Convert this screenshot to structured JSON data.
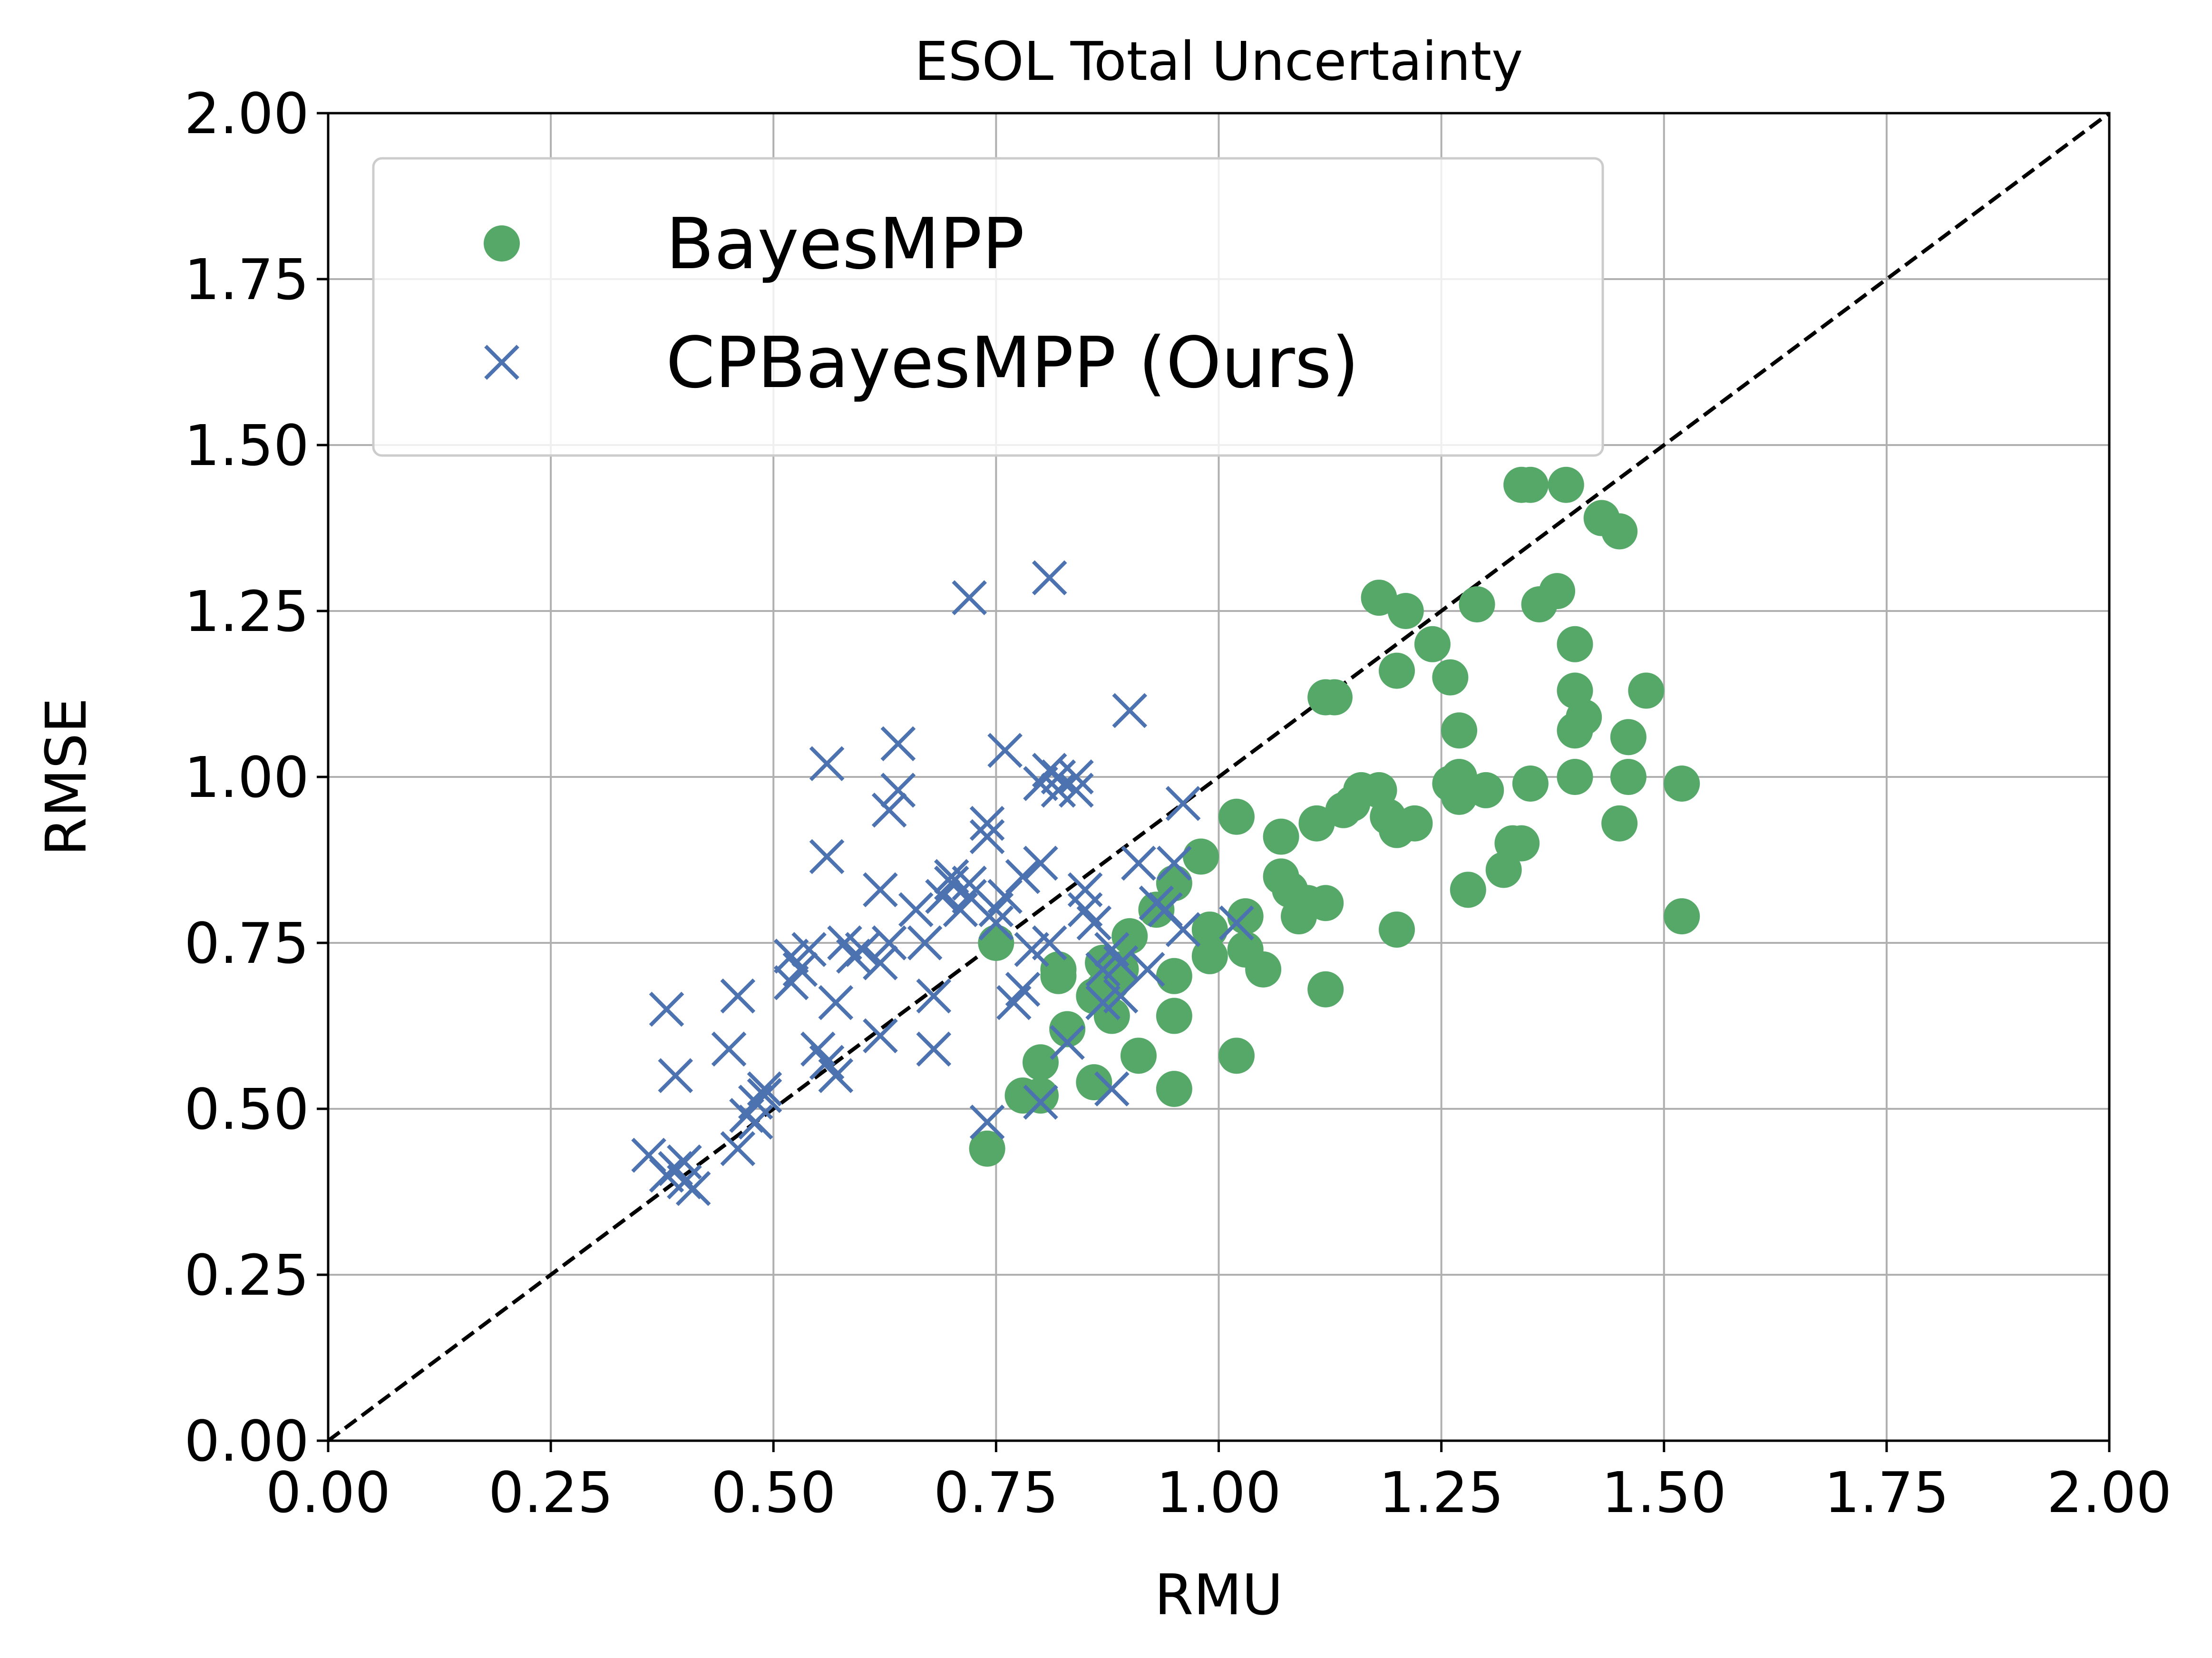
{
  "chart_data": {
    "type": "scatter",
    "title": "ESOL Total Uncertainty",
    "xlabel": "RMU",
    "ylabel": "RMSE",
    "xlim": [
      0,
      2
    ],
    "ylim": [
      0,
      2
    ],
    "xticks": [
      "0.00",
      "0.25",
      "0.50",
      "0.75",
      "1.00",
      "1.25",
      "1.50",
      "1.75",
      "2.00"
    ],
    "yticks": [
      "0.00",
      "0.25",
      "0.50",
      "0.75",
      "1.00",
      "1.25",
      "1.50",
      "1.75",
      "2.00"
    ],
    "grid": true,
    "legend_position": "top-left",
    "reference_line": {
      "style": "dashed",
      "color": "#000000",
      "from": [
        0,
        0
      ],
      "to": [
        2,
        2
      ]
    },
    "series": [
      {
        "name": "BayesMPP",
        "marker": "circle",
        "color": "#55a868",
        "points": [
          [
            0.74,
            0.44
          ],
          [
            0.75,
            0.75
          ],
          [
            0.78,
            0.52
          ],
          [
            0.8,
            0.52
          ],
          [
            0.8,
            0.57
          ],
          [
            0.82,
            0.71
          ],
          [
            0.82,
            0.7
          ],
          [
            0.83,
            0.62
          ],
          [
            0.86,
            0.54
          ],
          [
            0.86,
            0.67
          ],
          [
            0.87,
            0.68
          ],
          [
            0.87,
            0.72
          ],
          [
            0.88,
            0.64
          ],
          [
            0.88,
            0.69
          ],
          [
            0.89,
            0.71
          ],
          [
            0.9,
            0.76
          ],
          [
            0.91,
            0.58
          ],
          [
            0.93,
            0.8
          ],
          [
            0.95,
            0.53
          ],
          [
            0.95,
            0.64
          ],
          [
            0.95,
            0.7
          ],
          [
            0.95,
            0.84
          ],
          [
            0.98,
            0.88
          ],
          [
            0.99,
            0.77
          ],
          [
            0.99,
            0.73
          ],
          [
            1.02,
            0.58
          ],
          [
            1.02,
            0.94
          ],
          [
            1.03,
            0.79
          ],
          [
            1.03,
            0.74
          ],
          [
            1.05,
            0.71
          ],
          [
            1.07,
            0.85
          ],
          [
            1.07,
            0.91
          ],
          [
            1.08,
            0.83
          ],
          [
            1.09,
            0.79
          ],
          [
            1.1,
            0.81
          ],
          [
            1.11,
            0.93
          ],
          [
            1.12,
            0.68
          ],
          [
            1.12,
            0.81
          ],
          [
            1.12,
            1.12
          ],
          [
            1.13,
            1.12
          ],
          [
            1.14,
            0.95
          ],
          [
            1.15,
            0.96
          ],
          [
            1.16,
            0.98
          ],
          [
            1.18,
            0.98
          ],
          [
            1.18,
            1.27
          ],
          [
            1.19,
            0.94
          ],
          [
            1.2,
            0.77
          ],
          [
            1.2,
            0.92
          ],
          [
            1.2,
            1.16
          ],
          [
            1.21,
            1.25
          ],
          [
            1.22,
            0.93
          ],
          [
            1.24,
            1.2
          ],
          [
            1.26,
            1.15
          ],
          [
            1.26,
            0.99
          ],
          [
            1.27,
            1.07
          ],
          [
            1.27,
            0.97
          ],
          [
            1.27,
            1.0
          ],
          [
            1.28,
            0.83
          ],
          [
            1.29,
            1.26
          ],
          [
            1.3,
            0.98
          ],
          [
            1.32,
            0.86
          ],
          [
            1.33,
            0.9
          ],
          [
            1.34,
            0.9
          ],
          [
            1.34,
            1.44
          ],
          [
            1.35,
            1.44
          ],
          [
            1.35,
            0.99
          ],
          [
            1.36,
            1.26
          ],
          [
            1.38,
            1.28
          ],
          [
            1.39,
            1.44
          ],
          [
            1.4,
            1.2
          ],
          [
            1.4,
            1.13
          ],
          [
            1.4,
            1.07
          ],
          [
            1.4,
            1.0
          ],
          [
            1.41,
            1.09
          ],
          [
            1.43,
            1.39
          ],
          [
            1.45,
            0.93
          ],
          [
            1.45,
            1.37
          ],
          [
            1.46,
            1.0
          ],
          [
            1.46,
            1.06
          ],
          [
            1.48,
            1.13
          ],
          [
            1.52,
            0.99
          ],
          [
            1.52,
            0.79
          ]
        ]
      },
      {
        "name": "CPBayesMPP (Ours)",
        "marker": "x",
        "color": "#4c72b0",
        "points": [
          [
            0.36,
            0.43
          ],
          [
            0.38,
            0.4
          ],
          [
            0.39,
            0.41
          ],
          [
            0.4,
            0.42
          ],
          [
            0.4,
            0.39
          ],
          [
            0.41,
            0.38
          ],
          [
            0.38,
            0.65
          ],
          [
            0.39,
            0.55
          ],
          [
            0.45,
            0.59
          ],
          [
            0.46,
            0.67
          ],
          [
            0.46,
            0.44
          ],
          [
            0.47,
            0.49
          ],
          [
            0.48,
            0.51
          ],
          [
            0.48,
            0.48
          ],
          [
            0.49,
            0.53
          ],
          [
            0.49,
            0.52
          ],
          [
            0.52,
            0.69
          ],
          [
            0.52,
            0.73
          ],
          [
            0.53,
            0.71
          ],
          [
            0.54,
            0.74
          ],
          [
            0.55,
            0.59
          ],
          [
            0.56,
            0.57
          ],
          [
            0.56,
            0.88
          ],
          [
            0.56,
            1.02
          ],
          [
            0.57,
            0.55
          ],
          [
            0.57,
            0.66
          ],
          [
            0.58,
            0.75
          ],
          [
            0.59,
            0.73
          ],
          [
            0.6,
            0.74
          ],
          [
            0.62,
            0.61
          ],
          [
            0.62,
            0.72
          ],
          [
            0.62,
            0.83
          ],
          [
            0.63,
            0.75
          ],
          [
            0.63,
            0.95
          ],
          [
            0.64,
            0.98
          ],
          [
            0.64,
            1.05
          ],
          [
            0.66,
            0.8
          ],
          [
            0.67,
            0.75
          ],
          [
            0.68,
            0.59
          ],
          [
            0.68,
            0.67
          ],
          [
            0.69,
            0.82
          ],
          [
            0.7,
            0.84
          ],
          [
            0.7,
            0.85
          ],
          [
            0.71,
            0.8
          ],
          [
            0.72,
            0.84
          ],
          [
            0.72,
            0.82
          ],
          [
            0.72,
            1.27
          ],
          [
            0.74,
            0.91
          ],
          [
            0.74,
            0.93
          ],
          [
            0.74,
            0.48
          ],
          [
            0.75,
            0.8
          ],
          [
            0.75,
            0.78
          ],
          [
            0.76,
            0.82
          ],
          [
            0.76,
            1.04
          ],
          [
            0.77,
            0.66
          ],
          [
            0.78,
            0.85
          ],
          [
            0.78,
            0.68
          ],
          [
            0.79,
            0.74
          ],
          [
            0.8,
            0.51
          ],
          [
            0.8,
            0.87
          ],
          [
            0.8,
            0.99
          ],
          [
            0.81,
            1.01
          ],
          [
            0.81,
            0.75
          ],
          [
            0.81,
            1.3
          ],
          [
            0.82,
            0.98
          ],
          [
            0.82,
            1.0
          ],
          [
            0.83,
            0.6
          ],
          [
            0.84,
            0.98
          ],
          [
            0.84,
            1.0
          ],
          [
            0.85,
            0.8
          ],
          [
            0.85,
            0.83
          ],
          [
            0.86,
            0.78
          ],
          [
            0.87,
            0.71
          ],
          [
            0.87,
            0.66
          ],
          [
            0.88,
            0.74
          ],
          [
            0.88,
            0.53
          ],
          [
            0.89,
            0.72
          ],
          [
            0.89,
            0.67
          ],
          [
            0.9,
            1.1
          ],
          [
            0.91,
            0.87
          ],
          [
            0.92,
            0.71
          ],
          [
            0.93,
            0.81
          ],
          [
            0.94,
            0.8
          ],
          [
            0.95,
            0.87
          ],
          [
            0.96,
            0.77
          ],
          [
            0.96,
            0.96
          ],
          [
            1.02,
            0.78
          ]
        ]
      }
    ]
  }
}
